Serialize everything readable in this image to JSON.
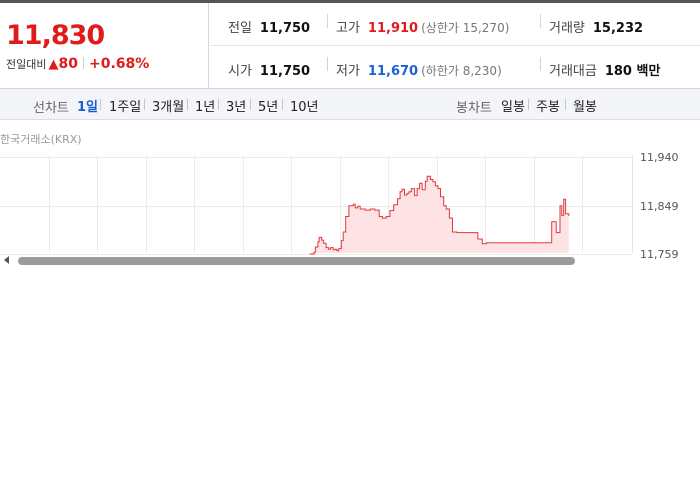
{
  "quote": {
    "price": "11,830",
    "change_label": "전일대비",
    "change_arrow": "▲",
    "change_amount": "80",
    "change_percent": "+0.68%",
    "color_up": "#e01b1b",
    "color_down": "#1a62d6"
  },
  "stats": {
    "prev_close": {
      "label": "전일",
      "value": "11,750"
    },
    "high": {
      "label": "고가",
      "value": "11,910",
      "limit": "(상한가 15,270)"
    },
    "volume": {
      "label": "거래량",
      "value": "15,232"
    },
    "open": {
      "label": "시가",
      "value": "11,750"
    },
    "low": {
      "label": "저가",
      "value": "11,670",
      "limit": "(하한가 8,230)"
    },
    "trade_amount": {
      "label": "거래대금",
      "value": "180 백만"
    }
  },
  "toolbar": {
    "line_chart_label": "선차트",
    "periods": [
      "1일",
      "1주일",
      "3개월",
      "1년",
      "3년",
      "5년",
      "10년"
    ],
    "active_period": "1일",
    "candle_chart_label": "봉차트",
    "candle_periods": [
      "일봉",
      "주봉",
      "월봉"
    ]
  },
  "chart": {
    "exchange_label": "한국거래소(KRX)",
    "y_ticks": [
      "11,940",
      "11,849",
      "11,759"
    ]
  },
  "chart_data": {
    "type": "area",
    "title": "",
    "ylim": [
      11759,
      11940
    ],
    "y_ticks": [
      11940,
      11849,
      11759
    ],
    "x_range": [
      0,
      100
    ],
    "line_color": "#e0393b",
    "fill_color": "#fde3e4",
    "grid": true,
    "series": [
      {
        "x": [
          49,
          49.7,
          49.9,
          50.3,
          50.5,
          50.9,
          51.2,
          51.6,
          52.0,
          52.3,
          52.7,
          53.0,
          53.3,
          53.6,
          54.0,
          54.3,
          54.7,
          55.2,
          55.9,
          56.2,
          56.6,
          57.0,
          57.3,
          57.8,
          58.6,
          59.3,
          60.0,
          60.5,
          61.1,
          61.7,
          62.3,
          62.9,
          63.3,
          63.6,
          64.0,
          64.4,
          64.7,
          65.1,
          65.6,
          66.0,
          66.4,
          66.8,
          67.3,
          67.6,
          68.1,
          68.5,
          68.9,
          69.3,
          69.7,
          70.2,
          70.6,
          71.1,
          71.6,
          72.3,
          72.9,
          73.5,
          74.2,
          74.9,
          75.6,
          76.3,
          77.0,
          77.7,
          78.4,
          79.1,
          79.8,
          80.5,
          81.2,
          81.9,
          82.6,
          83.3,
          84.0,
          84.7,
          85.4,
          86.1,
          86.5,
          86.9,
          87.3,
          87.7,
          88.0,
          88.3,
          88.6,
          88.9,
          89.2,
          89.5,
          90.0
        ],
        "y": [
          11759,
          11762,
          11772,
          11782,
          11790,
          11785,
          11779,
          11771,
          11768,
          11771,
          11767,
          11768,
          11765,
          11769,
          11784,
          11800,
          11829,
          11849,
          11852,
          11845,
          11848,
          11843,
          11843,
          11841,
          11843,
          11841,
          11829,
          11826,
          11829,
          11840,
          11851,
          11862,
          11875,
          11880,
          11869,
          11872,
          11875,
          11881,
          11868,
          11881,
          11891,
          11879,
          11895,
          11904,
          11898,
          11894,
          11886,
          11881,
          11866,
          11849,
          11843,
          11826,
          11800,
          11799,
          11799,
          11799,
          11799,
          11799,
          11787,
          11778,
          11780,
          11780,
          11780,
          11780,
          11780,
          11780,
          11780,
          11780,
          11780,
          11780,
          11780,
          11780,
          11780,
          11780,
          11780,
          11780,
          11819,
          11819,
          11799,
          11799,
          11849,
          11831,
          11861,
          11834,
          11830
        ]
      }
    ]
  }
}
